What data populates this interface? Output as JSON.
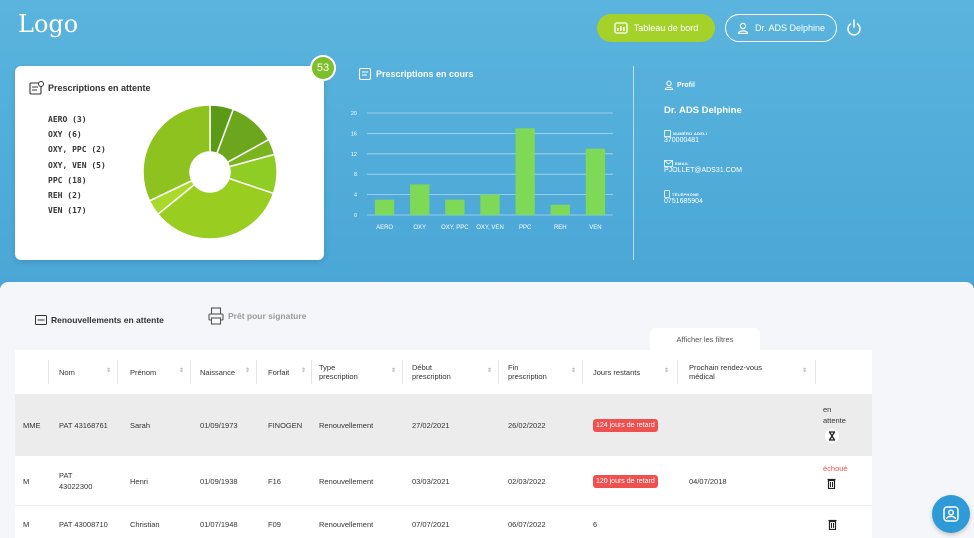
{
  "header": {
    "logo": "Logo",
    "dashboard_label": "Tableau de bord",
    "user_label": "Dr. ADS Delphine"
  },
  "waiting": {
    "title": "Prescriptions en attente",
    "badge": "53",
    "legend": [
      "AERO (3)",
      "OXY (6)",
      "OXY, PPC (2)",
      "OXY, VEN (5)",
      "PPC (18)",
      "REH (2)",
      "VEN (17)"
    ]
  },
  "courses": {
    "title": "Prescriptions en cours"
  },
  "chart_data": {
    "type": "bar",
    "title": "Prescriptions en cours",
    "categories": [
      "AERO",
      "OXY",
      "OXY, PPC",
      "OXY, VEN",
      "PPC",
      "REH",
      "VEN"
    ],
    "values": [
      3,
      6,
      3,
      4,
      17,
      2,
      13
    ],
    "ylim": [
      0,
      20
    ],
    "yticks": [
      0,
      4,
      8,
      12,
      16,
      20
    ],
    "grid": true,
    "colors": {
      "bar": "#7ed957"
    }
  },
  "pie_data": {
    "type": "pie",
    "categories": [
      "AERO",
      "OXY",
      "OXY, PPC",
      "OXY, VEN",
      "PPC",
      "REH",
      "VEN"
    ],
    "values": [
      3,
      6,
      2,
      5,
      18,
      2,
      17
    ],
    "colors": [
      "#5b9a17",
      "#6ba61d",
      "#7ab51f",
      "#8fcc24",
      "#99cd1f",
      "#a8d92b",
      "#8ec21e"
    ]
  },
  "profil": {
    "title": "Profil",
    "name": "Dr. ADS Delphine",
    "adeli_label": "NUMÉRO ADELI",
    "adeli_value": "370000481",
    "email_label": "EMAIL",
    "email_value": "PJOLLET@ADS31.COM",
    "phone_label": "TÉLÉPHONE",
    "phone_value": "0751685904"
  },
  "tabs": {
    "renewals": "Renouvellements en attente",
    "signature": "Prêt pour signature",
    "filters": "Afficher les filtres"
  },
  "table": {
    "columns": [
      "Nom",
      "Prénom",
      "Naissance",
      "Forfait",
      "Type prescription",
      "Début prescription",
      "Fin prescription",
      "Jours restants",
      "Prochain rendez-vous médical"
    ],
    "rows": [
      {
        "civ": "MME",
        "nom": "PAT 43168761",
        "prenom": "Sarah",
        "naissance": "01/09/1973",
        "forfait": "FINOGEN",
        "type": "Renouvellement",
        "debut": "27/02/2021",
        "fin": "26/02/2022",
        "jours": "124 jours de retard",
        "rdv": "",
        "status": "en attente"
      },
      {
        "civ": "M",
        "nom": "PAT 43022300",
        "prenom": "Henri",
        "naissance": "01/09/1938",
        "forfait": "F16",
        "type": "Renouvellement",
        "debut": "03/03/2021",
        "fin": "02/03/2022",
        "jours": "120 jours de retard",
        "rdv": "04/07/2018",
        "status": "échoué"
      },
      {
        "civ": "M",
        "nom": "PAT 43008710",
        "prenom": "Christian",
        "naissance": "01/07/1948",
        "forfait": "F09",
        "type": "Renouvellement",
        "debut": "07/07/2021",
        "fin": "06/07/2022",
        "jours": "6",
        "rdv": "",
        "status": ""
      }
    ]
  },
  "colors": {
    "accent_green": "#a5d22a",
    "hero_blue": "#4aa6d6",
    "late_red": "#ef5150"
  }
}
